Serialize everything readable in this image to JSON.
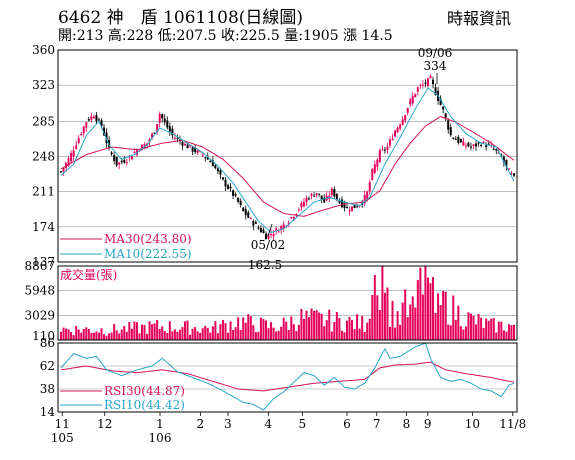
{
  "header": {
    "title": "6462 神　盾 1061108(日線圖)",
    "source": "時報資訊",
    "stats": "開:213 高:228 低:207.5 收:225.5 量:1905 漲 14.5"
  },
  "colors": {
    "up": "#e5005a",
    "down": "#000000",
    "ma30": "#d4145a",
    "ma10": "#2aa6c8",
    "volume": "#e5005a",
    "rsi30": "#d4145a",
    "rsi10": "#2aa6c8"
  },
  "chart_data": [
    {
      "type": "candlestick",
      "yticks": [
        "360",
        "323",
        "285",
        "248",
        "211",
        "174",
        "137"
      ],
      "ylim": [
        137,
        360
      ],
      "legend": [
        {
          "key": "ma30",
          "label": "MA30(243.80)"
        },
        {
          "key": "ma10",
          "label": "MA10(222.55)"
        }
      ],
      "annotations": [
        {
          "date": "09/06",
          "value": "334"
        },
        {
          "date": "05/02",
          "value": "162.5"
        }
      ],
      "price_anchors": [
        [
          0,
          232
        ],
        [
          3,
          245
        ],
        [
          6,
          262
        ],
        [
          10,
          285
        ],
        [
          13,
          292
        ],
        [
          16,
          280
        ],
        [
          19,
          255
        ],
        [
          22,
          240
        ],
        [
          26,
          245
        ],
        [
          30,
          255
        ],
        [
          34,
          262
        ],
        [
          37,
          275
        ],
        [
          39,
          293
        ],
        [
          41,
          283
        ],
        [
          44,
          270
        ],
        [
          48,
          262
        ],
        [
          52,
          255
        ],
        [
          56,
          250
        ],
        [
          60,
          240
        ],
        [
          64,
          222
        ],
        [
          67,
          212
        ],
        [
          70,
          200
        ],
        [
          72,
          190
        ],
        [
          76,
          178
        ],
        [
          79,
          170
        ],
        [
          81,
          164
        ],
        [
          85,
          170
        ],
        [
          89,
          178
        ],
        [
          93,
          190
        ],
        [
          97,
          204
        ],
        [
          101,
          210
        ],
        [
          104,
          200
        ],
        [
          107,
          212
        ],
        [
          110,
          200
        ],
        [
          113,
          193
        ],
        [
          116,
          195
        ],
        [
          119,
          200
        ],
        [
          121,
          210
        ],
        [
          123,
          232
        ],
        [
          126,
          252
        ],
        [
          129,
          258
        ],
        [
          132,
          275
        ],
        [
          135,
          288
        ],
        [
          138,
          306
        ],
        [
          141,
          320
        ],
        [
          144,
          325
        ],
        [
          146,
          330
        ],
        [
          148,
          315
        ],
        [
          151,
          296
        ],
        [
          154,
          270
        ],
        [
          158,
          262
        ],
        [
          162,
          258
        ],
        [
          166,
          262
        ],
        [
          170,
          258
        ],
        [
          174,
          248
        ],
        [
          176,
          236
        ],
        [
          179,
          225
        ]
      ],
      "ma10_anchors": [
        [
          0,
          228
        ],
        [
          5,
          240
        ],
        [
          10,
          270
        ],
        [
          15,
          285
        ],
        [
          19,
          260
        ],
        [
          24,
          245
        ],
        [
          29,
          250
        ],
        [
          34,
          260
        ],
        [
          39,
          278
        ],
        [
          44,
          272
        ],
        [
          50,
          262
        ],
        [
          56,
          252
        ],
        [
          62,
          238
        ],
        [
          68,
          220
        ],
        [
          73,
          200
        ],
        [
          78,
          180
        ],
        [
          83,
          168
        ],
        [
          88,
          172
        ],
        [
          94,
          186
        ],
        [
          100,
          200
        ],
        [
          106,
          205
        ],
        [
          112,
          200
        ],
        [
          118,
          196
        ],
        [
          122,
          205
        ],
        [
          128,
          240
        ],
        [
          134,
          268
        ],
        [
          140,
          298
        ],
        [
          145,
          320
        ],
        [
          149,
          312
        ],
        [
          154,
          290
        ],
        [
          160,
          272
        ],
        [
          166,
          262
        ],
        [
          172,
          258
        ],
        [
          179,
          222
        ]
      ],
      "ma30_anchors": [
        [
          0,
          235
        ],
        [
          10,
          250
        ],
        [
          20,
          258
        ],
        [
          30,
          255
        ],
        [
          40,
          262
        ],
        [
          48,
          265
        ],
        [
          56,
          258
        ],
        [
          64,
          245
        ],
        [
          72,
          225
        ],
        [
          80,
          200
        ],
        [
          88,
          188
        ],
        [
          96,
          185
        ],
        [
          104,
          192
        ],
        [
          112,
          198
        ],
        [
          120,
          200
        ],
        [
          126,
          212
        ],
        [
          132,
          240
        ],
        [
          138,
          262
        ],
        [
          144,
          280
        ],
        [
          150,
          290
        ],
        [
          156,
          284
        ],
        [
          162,
          275
        ],
        [
          170,
          262
        ],
        [
          179,
          244
        ]
      ]
    },
    {
      "type": "bar",
      "title": "成交量(張)",
      "yticks": [
        "8867",
        "5948",
        "3029",
        "110"
      ],
      "ylim": [
        110,
        8867
      ],
      "volume_anchors": [
        [
          0,
          1400
        ],
        [
          20,
          1300
        ],
        [
          38,
          1700
        ],
        [
          60,
          1500
        ],
        [
          70,
          2300
        ],
        [
          85,
          1600
        ],
        [
          95,
          2700
        ],
        [
          110,
          2300
        ],
        [
          120,
          2000
        ],
        [
          124,
          6500
        ],
        [
          127,
          8600
        ],
        [
          130,
          3500
        ],
        [
          134,
          2800
        ],
        [
          140,
          3800
        ],
        [
          144,
          8800
        ],
        [
          148,
          3600
        ],
        [
          152,
          4200
        ],
        [
          160,
          2700
        ],
        [
          170,
          1800
        ],
        [
          179,
          1800
        ]
      ],
      "volume_spikes": [
        [
          124,
          7800
        ],
        [
          125,
          5400
        ],
        [
          127,
          8867
        ],
        [
          136,
          6100
        ],
        [
          141,
          7200
        ],
        [
          144,
          8800
        ],
        [
          145,
          7500
        ],
        [
          151,
          5900
        ]
      ]
    },
    {
      "type": "line",
      "yticks": [
        "86",
        "62",
        "38",
        "14"
      ],
      "ylim": [
        14,
        86
      ],
      "legend": [
        {
          "key": "rsi30",
          "label": "RSI30(44.87)"
        },
        {
          "key": "rsi10",
          "label": "RSI10(44.42)"
        }
      ],
      "rsi30_anchors": [
        [
          0,
          58
        ],
        [
          10,
          62
        ],
        [
          20,
          57
        ],
        [
          30,
          55
        ],
        [
          40,
          58
        ],
        [
          50,
          54
        ],
        [
          60,
          46
        ],
        [
          70,
          38
        ],
        [
          80,
          36
        ],
        [
          90,
          40
        ],
        [
          100,
          44
        ],
        [
          110,
          46
        ],
        [
          120,
          48
        ],
        [
          126,
          60
        ],
        [
          132,
          63
        ],
        [
          140,
          64
        ],
        [
          146,
          66
        ],
        [
          152,
          58
        ],
        [
          160,
          54
        ],
        [
          170,
          50
        ],
        [
          179,
          45
        ]
      ],
      "rsi10_anchors": [
        [
          0,
          60
        ],
        [
          5,
          75
        ],
        [
          10,
          70
        ],
        [
          14,
          72
        ],
        [
          18,
          58
        ],
        [
          24,
          52
        ],
        [
          30,
          58
        ],
        [
          36,
          62
        ],
        [
          40,
          70
        ],
        [
          46,
          56
        ],
        [
          52,
          50
        ],
        [
          58,
          44
        ],
        [
          64,
          36
        ],
        [
          68,
          30
        ],
        [
          72,
          24
        ],
        [
          76,
          22
        ],
        [
          80,
          16
        ],
        [
          84,
          28
        ],
        [
          88,
          35
        ],
        [
          92,
          45
        ],
        [
          96,
          55
        ],
        [
          100,
          52
        ],
        [
          104,
          42
        ],
        [
          108,
          50
        ],
        [
          112,
          40
        ],
        [
          116,
          38
        ],
        [
          120,
          44
        ],
        [
          124,
          60
        ],
        [
          128,
          80
        ],
        [
          130,
          70
        ],
        [
          134,
          72
        ],
        [
          140,
          82
        ],
        [
          144,
          86
        ],
        [
          146,
          70
        ],
        [
          150,
          50
        ],
        [
          154,
          46
        ],
        [
          158,
          48
        ],
        [
          162,
          44
        ],
        [
          166,
          38
        ],
        [
          170,
          36
        ],
        [
          174,
          30
        ],
        [
          177,
          42
        ],
        [
          179,
          44
        ]
      ]
    }
  ],
  "xaxis": {
    "labels": [
      {
        "idx": 2,
        "top": "11",
        "bottom": "105"
      },
      {
        "idx": 22,
        "top": "12",
        "bottom": ""
      },
      {
        "idx": 48,
        "top": "1",
        "bottom": "106"
      },
      {
        "idx": 67,
        "top": "2",
        "bottom": ""
      },
      {
        "idx": 80,
        "top": "3",
        "bottom": ""
      },
      {
        "idx": 99,
        "top": "4",
        "bottom": ""
      },
      {
        "idx": 115,
        "top": "5",
        "bottom": ""
      },
      {
        "idx": 136,
        "top": "6",
        "bottom": ""
      },
      {
        "idx": 150,
        "top": "7",
        "bottom": ""
      },
      {
        "idx": 164,
        "top": "8",
        "bottom": ""
      },
      {
        "idx": 174,
        "top": "9",
        "bottom": ""
      },
      {
        "idx": 195,
        "top": "10",
        "bottom": ""
      },
      {
        "idx": 214,
        "top": "11/8",
        "bottom": ""
      }
    ]
  }
}
